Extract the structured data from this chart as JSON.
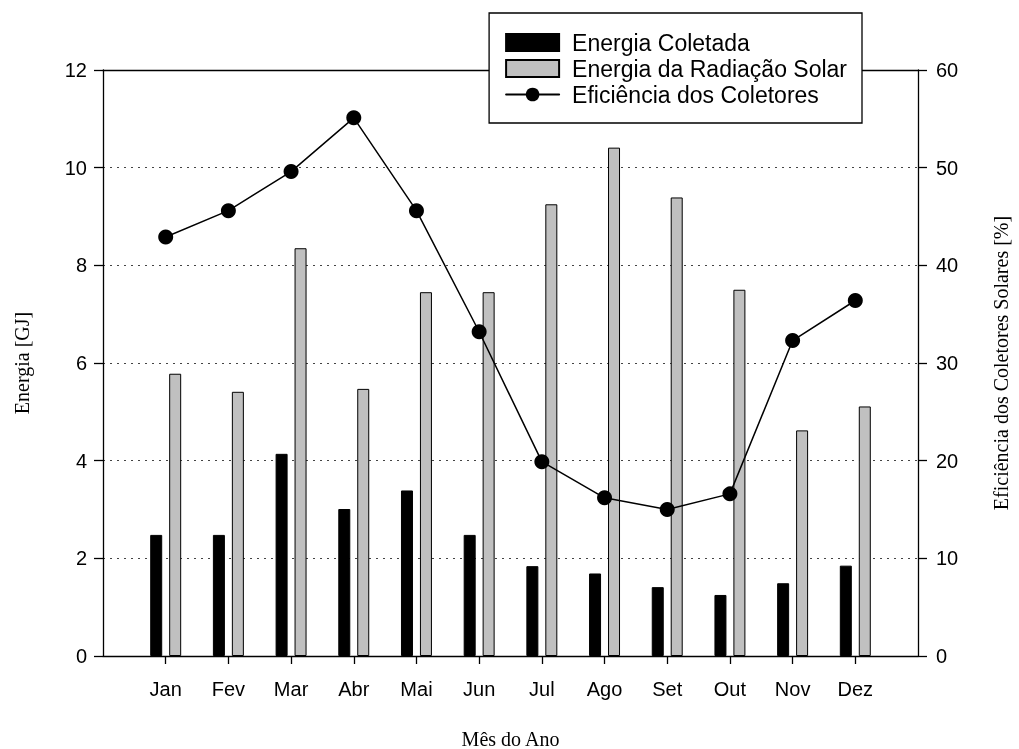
{
  "chart_data": {
    "type": "bar",
    "xlabel": "Mês do Ano",
    "ylabel": "Energia [GJ]",
    "y2label": "Eficiência dos Coletores Solares [%]",
    "categories": [
      "Jan",
      "Fev",
      "Mar",
      "Abr",
      "Mai",
      "Jun",
      "Jul",
      "Ago",
      "Set",
      "Out",
      "Nov",
      "Dez"
    ],
    "series": [
      {
        "name": "Energia Coletada",
        "color": "#000000",
        "values": [
          2.48,
          2.48,
          4.14,
          3.01,
          3.39,
          2.48,
          1.84,
          1.69,
          1.41,
          1.25,
          1.49,
          1.85
        ]
      },
      {
        "name": "Energia da Radiação Solar",
        "color": "#c0c0c0",
        "values": [
          5.78,
          5.41,
          8.35,
          5.47,
          7.45,
          7.45,
          9.25,
          10.41,
          9.39,
          7.5,
          4.62,
          5.11
        ]
      },
      {
        "name": "Eficiência dos Coletores",
        "type": "line",
        "axis": "y2",
        "color": "#000000",
        "marker": "circle",
        "values": [
          42.9,
          45.6,
          49.6,
          55.1,
          45.6,
          33.2,
          19.9,
          16.2,
          15.0,
          16.6,
          32.3,
          36.4
        ]
      }
    ],
    "ylim": [
      0,
      12
    ],
    "yticks": [
      0,
      2,
      4,
      6,
      8,
      10,
      12
    ],
    "y2lim": [
      0,
      60
    ],
    "y2ticks": [
      0,
      10,
      20,
      30,
      40,
      50,
      60
    ],
    "grid": "y",
    "legend": "top right"
  }
}
